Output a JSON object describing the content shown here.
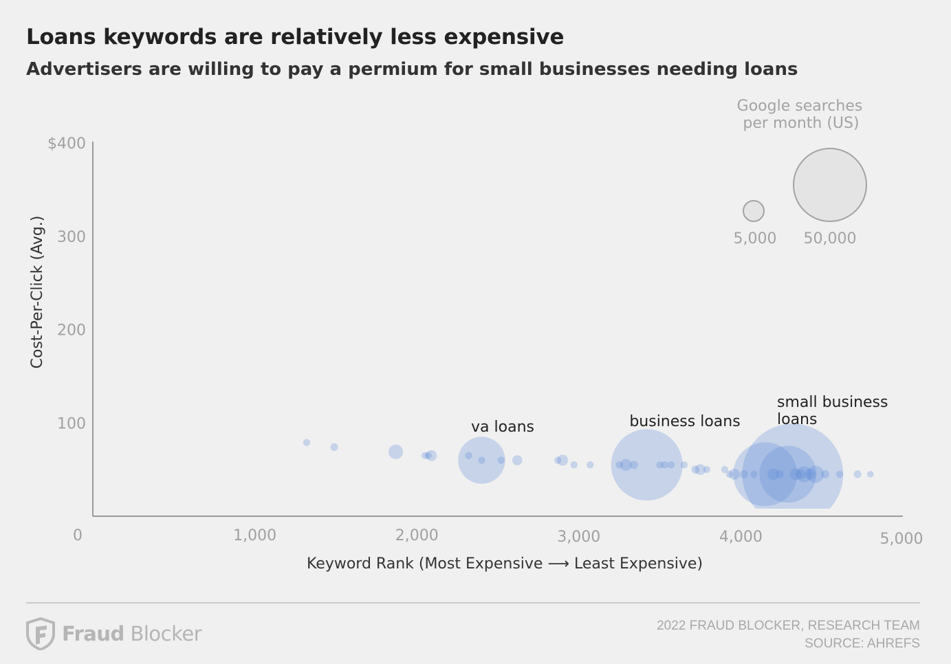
{
  "header": {
    "title": "Loans keywords are relatively less expensive",
    "subtitle": "Advertisers are willing to pay a permium for small businesses needing loans"
  },
  "legend": {
    "title_line1": "Google searches",
    "title_line2": "per month (US)",
    "small_label": "5,000",
    "small_value": 5000,
    "large_label": "50,000",
    "large_value": 50000
  },
  "footer": {
    "brand_bold": "Fraud",
    "brand_light": " Blocker",
    "credit_line1": "2022 FRAUD BLOCKER, RESEARCH TEAM",
    "credit_line2": "SOURCE: AHREFS"
  },
  "colors": {
    "bubble": "#5b87d6",
    "axis": "#9a9a9a",
    "tick_text": "#a0a0a0",
    "legend_fill": "#e4e4e4",
    "legend_stroke": "#a3a3a3"
  },
  "chart_data": {
    "type": "scatter",
    "title": "Loans keywords are relatively less expensive",
    "xlabel": "Keyword Rank (Most Expensive  ⟶  Least Expensive)",
    "ylabel": "Cost-Per-Click (Avg.)",
    "xlim": [
      0,
      5000
    ],
    "ylim": [
      0,
      400
    ],
    "x_ticks": [
      {
        "value": 0,
        "label": "0"
      },
      {
        "value": 1000,
        "label": "1,000"
      },
      {
        "value": 2000,
        "label": "2,000"
      },
      {
        "value": 3000,
        "label": "3,000"
      },
      {
        "value": 4000,
        "label": "4,000"
      },
      {
        "value": 5000,
        "label": "5,000"
      }
    ],
    "y_ticks": [
      {
        "value": 100,
        "label": "100"
      },
      {
        "value": 200,
        "label": "200"
      },
      {
        "value": 300,
        "label": "300"
      },
      {
        "value": 400,
        "label": "$400"
      }
    ],
    "size_field": "Google searches per month (US)",
    "points": [
      {
        "x": 1320,
        "y": 79,
        "size": 600
      },
      {
        "x": 1490,
        "y": 74,
        "size": 700
      },
      {
        "x": 1870,
        "y": 69,
        "size": 2500
      },
      {
        "x": 2050,
        "y": 65,
        "size": 600
      },
      {
        "x": 2070,
        "y": 65,
        "size": 600
      },
      {
        "x": 2090,
        "y": 65,
        "size": 1400
      },
      {
        "x": 2320,
        "y": 65,
        "size": 600
      },
      {
        "x": 2400,
        "y": 60,
        "size": 26000,
        "label": "va loans"
      },
      {
        "x": 2400,
        "y": 60,
        "size": 600
      },
      {
        "x": 2520,
        "y": 60,
        "size": 600
      },
      {
        "x": 2620,
        "y": 60,
        "size": 1200
      },
      {
        "x": 2870,
        "y": 60,
        "size": 600
      },
      {
        "x": 2900,
        "y": 60,
        "size": 1400
      },
      {
        "x": 2970,
        "y": 55,
        "size": 600
      },
      {
        "x": 3070,
        "y": 55,
        "size": 600
      },
      {
        "x": 3250,
        "y": 55,
        "size": 600
      },
      {
        "x": 3290,
        "y": 55,
        "size": 1600
      },
      {
        "x": 3340,
        "y": 55,
        "size": 800
      },
      {
        "x": 3420,
        "y": 55,
        "size": 60000,
        "label": "business loans"
      },
      {
        "x": 3500,
        "y": 55,
        "size": 600
      },
      {
        "x": 3530,
        "y": 55,
        "size": 600
      },
      {
        "x": 3570,
        "y": 55,
        "size": 600
      },
      {
        "x": 3650,
        "y": 55,
        "size": 600
      },
      {
        "x": 3720,
        "y": 50,
        "size": 800
      },
      {
        "x": 3750,
        "y": 50,
        "size": 1400
      },
      {
        "x": 3790,
        "y": 50,
        "size": 600
      },
      {
        "x": 3900,
        "y": 50,
        "size": 600
      },
      {
        "x": 3930,
        "y": 45,
        "size": 600
      },
      {
        "x": 3960,
        "y": 45,
        "size": 1400
      },
      {
        "x": 4020,
        "y": 45,
        "size": 800
      },
      {
        "x": 4080,
        "y": 45,
        "size": 600
      },
      {
        "x": 4150,
        "y": 45,
        "size": 48000
      },
      {
        "x": 4200,
        "y": 45,
        "size": 1600
      },
      {
        "x": 4240,
        "y": 45,
        "size": 800
      },
      {
        "x": 4290,
        "y": 45,
        "size": 38000
      },
      {
        "x": 4320,
        "y": 45,
        "size": 120000,
        "label": "small business loans"
      },
      {
        "x": 4340,
        "y": 45,
        "size": 1600
      },
      {
        "x": 4370,
        "y": 45,
        "size": 1200
      },
      {
        "x": 4390,
        "y": 45,
        "size": 3000
      },
      {
        "x": 4430,
        "y": 45,
        "size": 1400
      },
      {
        "x": 4460,
        "y": 45,
        "size": 3500
      },
      {
        "x": 4520,
        "y": 45,
        "size": 800
      },
      {
        "x": 4610,
        "y": 45,
        "size": 600
      },
      {
        "x": 4720,
        "y": 45,
        "size": 700
      },
      {
        "x": 4800,
        "y": 45,
        "size": 500
      }
    ],
    "annotations": [
      {
        "text": "va loans",
        "lines": [
          "va loans"
        ]
      },
      {
        "text": "business loans",
        "lines": [
          "business loans"
        ]
      },
      {
        "text": "small business loans",
        "lines": [
          "small business",
          "loans"
        ]
      }
    ]
  }
}
